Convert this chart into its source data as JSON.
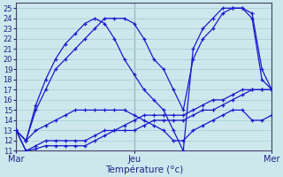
{
  "xlabel": "Température (°c)",
  "ylim": [
    11,
    25.5
  ],
  "yticks": [
    11,
    12,
    13,
    14,
    15,
    16,
    17,
    18,
    19,
    20,
    21,
    22,
    23,
    24,
    25
  ],
  "xtick_labels": [
    "Mar",
    "Jeu",
    "Mer"
  ],
  "xtick_positions": [
    0,
    12,
    26
  ],
  "background_color": "#cce8ec",
  "grid_color": "#aacfd8",
  "line_color": "#1a1acc",
  "s1_x": [
    0,
    1,
    2,
    3,
    4,
    5,
    6,
    7,
    8,
    9,
    10,
    11,
    12,
    13,
    14,
    15,
    16,
    17,
    18,
    19,
    20,
    21,
    22,
    23,
    24,
    25,
    26
  ],
  "s1_y": [
    13,
    12,
    15,
    17,
    19,
    20,
    21,
    22,
    23,
    24,
    24,
    24,
    23.5,
    22,
    20,
    19,
    17,
    15,
    20,
    22,
    23,
    24.5,
    25,
    25,
    24.5,
    19,
    17
  ],
  "s2_x": [
    0,
    1,
    2,
    3,
    4,
    5,
    6,
    7,
    8,
    9,
    10,
    11,
    12,
    13,
    14,
    15,
    16,
    17,
    18,
    19,
    20,
    21,
    22,
    23,
    24,
    25,
    26
  ],
  "s2_y": [
    13,
    12,
    15.5,
    18,
    20,
    21.5,
    22.5,
    23.5,
    24,
    23.5,
    22,
    20,
    18.5,
    17,
    16,
    15,
    13,
    11,
    21,
    23,
    24,
    25,
    25,
    25,
    24,
    18,
    17
  ],
  "s3_x": [
    0,
    1,
    2,
    3,
    4,
    5,
    6,
    7,
    8,
    9,
    10,
    11,
    12,
    13,
    14,
    15,
    16,
    17,
    18,
    19,
    20,
    21,
    22,
    23,
    24,
    25,
    26
  ],
  "s3_y": [
    13,
    11,
    11.5,
    12,
    12,
    12,
    12,
    12,
    12.5,
    13,
    13,
    13.5,
    14,
    14.5,
    14.5,
    14.5,
    14.5,
    14.5,
    15,
    15.5,
    16,
    16,
    16.5,
    17,
    17,
    17,
    17
  ],
  "s4_x": [
    0,
    1,
    2,
    3,
    4,
    5,
    6,
    7,
    8,
    9,
    10,
    11,
    12,
    13,
    14,
    15,
    16,
    17,
    18,
    19,
    20,
    21,
    22,
    23,
    24,
    25,
    26
  ],
  "s4_y": [
    13,
    11,
    11.2,
    11.5,
    11.5,
    11.5,
    11.5,
    11.5,
    12,
    12.5,
    13,
    13,
    13,
    13.5,
    14,
    14,
    14,
    14,
    14.5,
    15,
    15,
    15.5,
    16,
    16.5,
    17,
    17,
    17
  ],
  "s5_x": [
    0,
    1,
    2,
    3,
    4,
    5,
    6,
    7,
    8,
    9,
    10,
    11,
    12,
    13,
    14,
    15,
    16,
    17,
    18,
    19,
    20,
    21,
    22,
    23,
    24,
    25,
    26
  ],
  "s5_y": [
    13,
    12,
    13,
    13.5,
    14,
    14.5,
    15,
    15,
    15,
    15,
    15,
    15,
    14.5,
    14,
    13.5,
    13,
    12,
    12,
    13,
    13.5,
    14,
    14.5,
    15,
    15,
    14,
    14,
    14.5
  ]
}
